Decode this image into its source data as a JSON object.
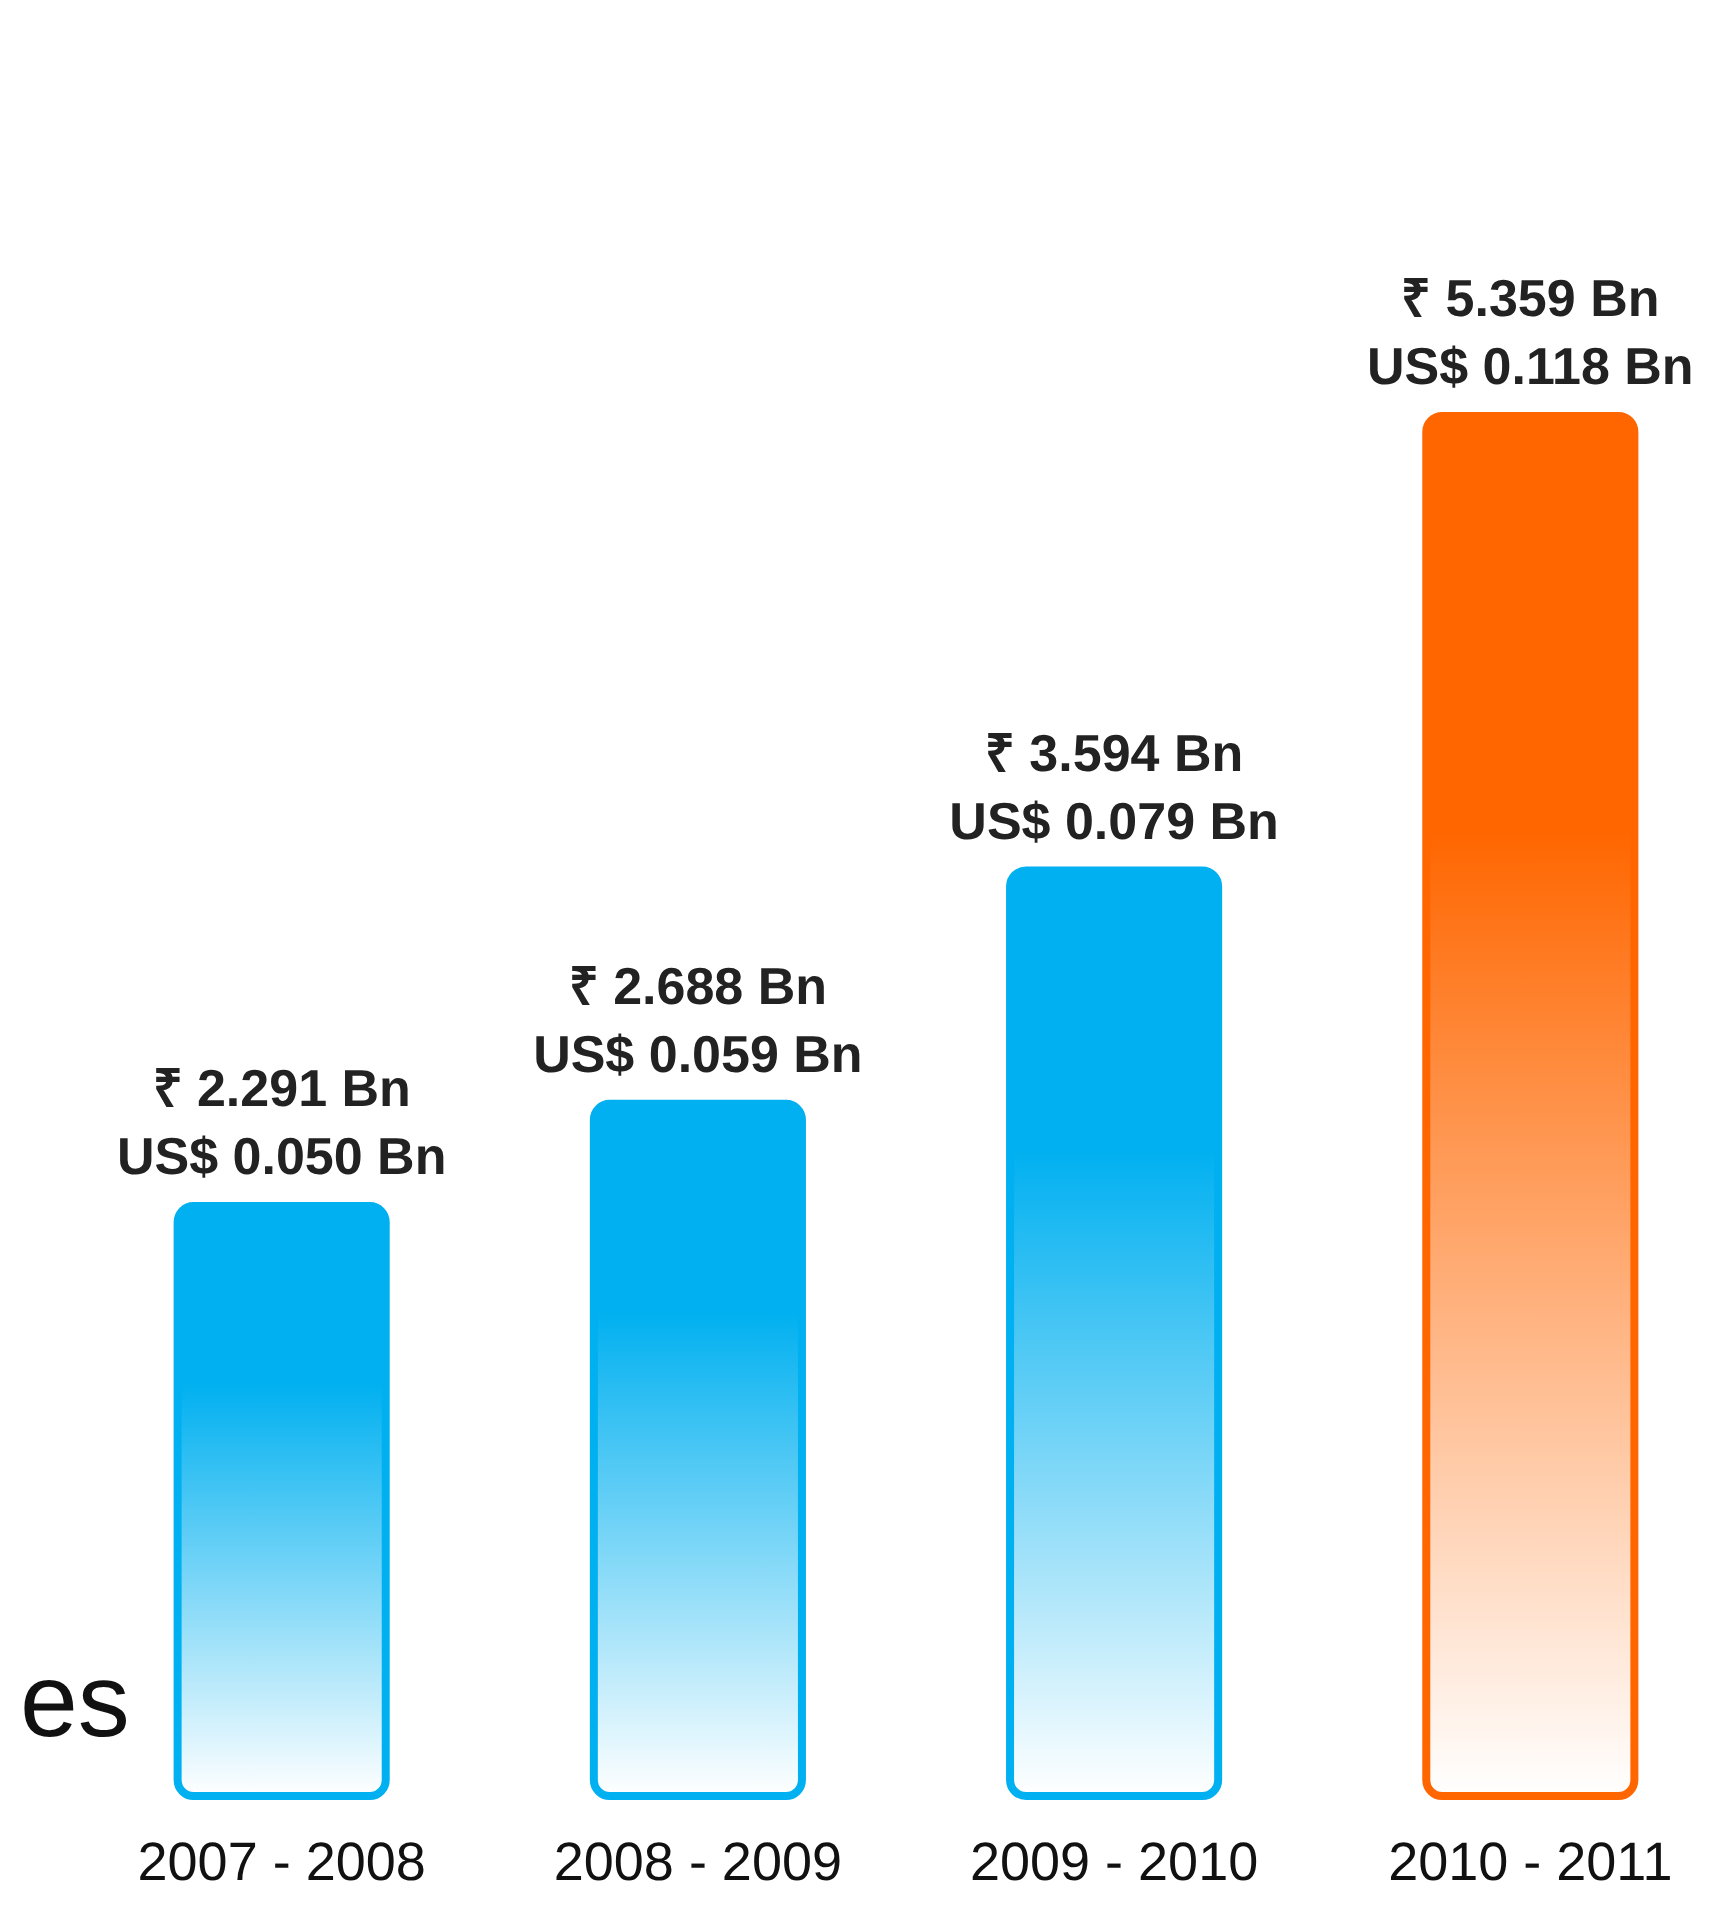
{
  "chart_data": {
    "type": "bar",
    "categories": [
      "2007 - 2008",
      "2008 - 2009",
      "2009 - 2010",
      "2010 - 2011"
    ],
    "values": [
      2.291,
      2.688,
      3.594,
      5.359
    ],
    "colors": [
      "#00b0f0",
      "#00b0f0",
      "#00b0f0",
      "#ff6600"
    ],
    "value_labels": [
      "₹ 2.291 Bn\nUS$ 0.050 Bn",
      "₹ 2.688 Bn\nUS$ 0.059 Bn",
      "₹ 3.594 Bn\nUS$ 0.079 Bn",
      "₹ 5.359 Bn\nUS$ 0.118 Bn"
    ],
    "annotations": [
      "es"
    ]
  }
}
